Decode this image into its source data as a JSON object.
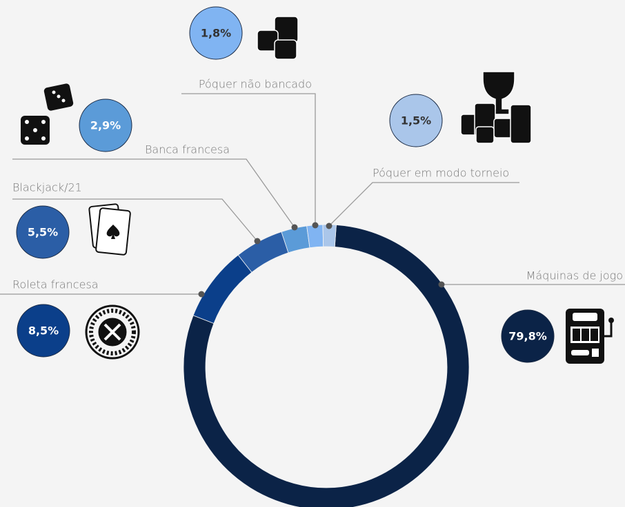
{
  "chart_data": {
    "type": "donut",
    "categories": [
      "Máquinas de jogo",
      "Roleta francesa",
      "Blackjack/21",
      "Banca francesa",
      "Póquer não bancado",
      "Póquer em modo torneio"
    ],
    "values": [
      79.8,
      8.5,
      5.5,
      2.9,
      1.8,
      1.5
    ],
    "value_labels": [
      "79,8%",
      "8,5%",
      "5,5%",
      "2,9%",
      "1,8%",
      "1,5%"
    ],
    "colors": [
      "#0b2347",
      "#0b3f8a",
      "#2b5ea6",
      "#5b9bd8",
      "#80b4f2",
      "#aac6ea"
    ]
  }
}
